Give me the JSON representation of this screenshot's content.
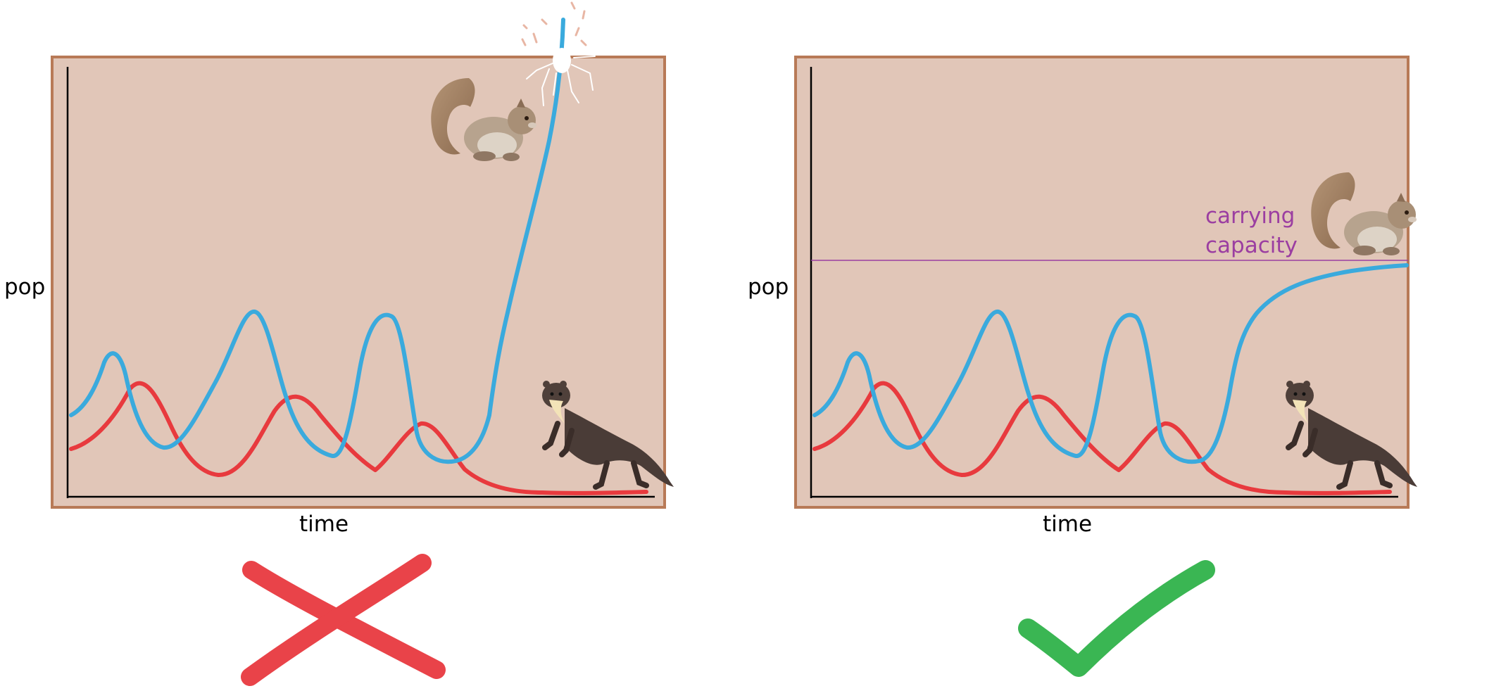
{
  "colors": {
    "panel_fill": "#e1c6b8",
    "panel_border": "#b87a57",
    "prey_line": "#3aaadd",
    "predator_line": "#e83a3e",
    "capacity_line": "#9b3ea1",
    "cross_mark": "#e8343a",
    "check_mark": "#2fb24a"
  },
  "panels": [
    {
      "id": "left",
      "ylabel": "pop",
      "xlabel": "time",
      "verdict": "cross",
      "prey_outcome": "unbounded growth",
      "icons": [
        "squirrel-icon",
        "marten-icon"
      ]
    },
    {
      "id": "right",
      "ylabel": "pop",
      "xlabel": "time",
      "verdict": "check",
      "prey_outcome": "levels off at carrying capacity",
      "capacity_label": [
        "carrying",
        "capacity"
      ],
      "icons": [
        "squirrel-icon",
        "marten-icon"
      ]
    }
  ]
}
